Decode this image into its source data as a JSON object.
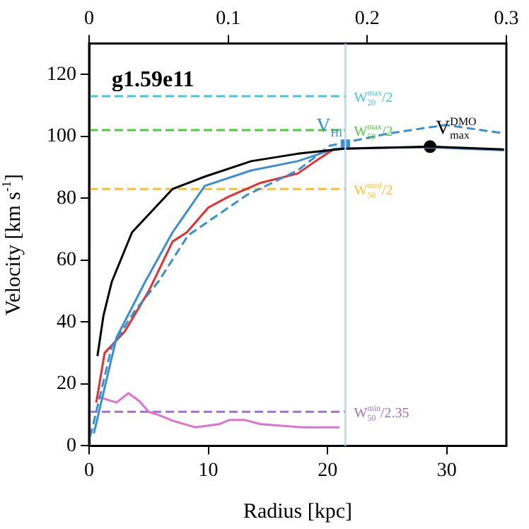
{
  "chart_data": {
    "type": "line",
    "title": "g1.59e11",
    "xlabel": "Radius [kpc]",
    "ylabel": "Velocity [km s$^{-1}$]",
    "xlim": [
      0,
      35
    ],
    "xticks": [
      0,
      10,
      20,
      30
    ],
    "x2lim": [
      0,
      0.3
    ],
    "x2ticks": [
      0,
      0.1,
      0.2,
      0.3
    ],
    "ylim": [
      0,
      130
    ],
    "yticks": [
      0,
      20,
      40,
      60,
      80,
      100,
      120
    ],
    "grid": false,
    "legend": false,
    "ref_lines": [
      {
        "axis": "x",
        "value": 21.5,
        "color": "#b8d4ea"
      }
    ],
    "series": [
      {
        "color": "#000000",
        "line_style": "solid",
        "x": [
          0.7,
          1.2,
          1.9,
          3.6,
          7.0,
          9.7,
          13.6,
          17.5,
          21.4,
          28.6,
          34.8
        ],
        "values": [
          29,
          42,
          53,
          69,
          83,
          87,
          92,
          94.4,
          96,
          96.7,
          95.8
        ]
      },
      {
        "color": "#3a8fd0",
        "line_style": "solid",
        "x": [
          0.4,
          2.3,
          4.7,
          7.0,
          9.7,
          13.6,
          17.5,
          20.6,
          24,
          28.6,
          34.8
        ],
        "values": [
          4,
          35,
          53,
          69,
          84,
          89,
          92,
          96,
          96.3,
          96.5,
          95.5
        ]
      },
      {
        "color": "#3a8fd0",
        "line_style": "dashed",
        "x": [
          0.1,
          1.9,
          3.9,
          5.8,
          8.3,
          13.2,
          17.5,
          19.3,
          20.2,
          25.2,
          29.9,
          34.8
        ],
        "values": [
          3,
          32,
          44,
          53,
          68,
          81,
          89,
          94.4,
          97,
          101,
          103.7,
          101
        ]
      },
      {
        "color": "#e03030",
        "line_style": "solid",
        "x": [
          0.6,
          1.3,
          3.0,
          5.0,
          7.0,
          8.2,
          10.0,
          11.7,
          14.4,
          17.5,
          19.0,
          20.6
        ],
        "values": [
          14,
          30,
          37,
          50,
          66,
          69,
          77,
          80.5,
          85,
          88,
          92,
          96
        ]
      },
      {
        "color": "#e070d0",
        "line_style": "solid",
        "x": [
          0.6,
          2.3,
          3.3,
          4.2,
          5.0,
          5.8,
          7.1,
          8.9,
          10.9,
          11.8,
          13.0,
          14.4,
          17.9,
          21.0
        ],
        "values": [
          16,
          14,
          17,
          14.5,
          11,
          10,
          8,
          6,
          7,
          8.4,
          8.4,
          7,
          6,
          6
        ]
      },
      {
        "name": "W$_{20}$$^{max}$/2",
        "color": "#40c8d8",
        "line_style": "dashed",
        "x": [
          0,
          21.5
        ],
        "values": [
          113,
          113
        ]
      },
      {
        "name": "W$_{50}$$^{max}$/2",
        "color": "#50c840",
        "line_style": "dashed",
        "x": [
          0,
          21.5
        ],
        "values": [
          102,
          102
        ]
      },
      {
        "name": "W$_{50}$$^{med}$/2",
        "color": "#f8c030",
        "line_style": "dashed",
        "x": [
          0,
          21.5
        ],
        "values": [
          83,
          83
        ]
      },
      {
        "name": "W$_{50}$$^{min}$/2.35",
        "color": "#a070d0",
        "line_style": "dashed",
        "x": [
          0,
          21.5
        ],
        "values": [
          11,
          11
        ]
      },
      {
        "type": "scatter",
        "name": "V$_{HI}$",
        "color": "#3a8fd0",
        "marker": "square",
        "x": [
          21.5
        ],
        "values": [
          97.5
        ]
      },
      {
        "type": "scatter",
        "name": "V$^{DMO}$$_{max}$",
        "color": "#000000",
        "marker": "circle",
        "x": [
          28.6
        ],
        "values": [
          96.7
        ]
      }
    ]
  }
}
